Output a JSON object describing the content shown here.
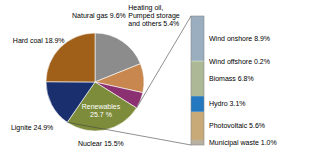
{
  "chart_data": [
    {
      "type": "pie",
      "categories": [
        "Hard coal 18.9%",
        "Natural gas 9.6%",
        "Heating oil,\nPumped storage\nand others 5.4%",
        "Renewables\n25.7 %",
        "Nuclear 15.5%",
        "Lignite 24.9%"
      ],
      "values": [
        18.9,
        9.6,
        5.4,
        25.7,
        15.5,
        24.9
      ],
      "colors": [
        "#8c8c8c",
        "#c8874e",
        "#8b3070",
        "#7d8c3a",
        "#1a2f6e",
        "#a0601a"
      ]
    },
    {
      "type": "bar",
      "stacked": true,
      "tick_labels": false,
      "categories": [
        null
      ],
      "ylim": [
        0,
        25.6
      ],
      "series": [
        {
          "name": "Municipal waste 1.0%",
          "color": "#b8b0a0",
          "values": [
            1.0
          ]
        },
        {
          "name": "Photovoltaic 5.6%",
          "color": "#c8aa78",
          "values": [
            5.6
          ]
        },
        {
          "name": "Hydro 3.1%",
          "color": "#2478c0",
          "values": [
            3.1
          ]
        },
        {
          "name": "Biomass 6.8%",
          "color": "#adb897",
          "values": [
            6.8
          ]
        },
        {
          "name": "Wind offshore 0.2%",
          "color": "#b8c8a0",
          "values": [
            0.2
          ]
        },
        {
          "name": "Wind onshore 8.9%",
          "color": "#9aaec0",
          "values": [
            8.9
          ]
        }
      ]
    }
  ]
}
